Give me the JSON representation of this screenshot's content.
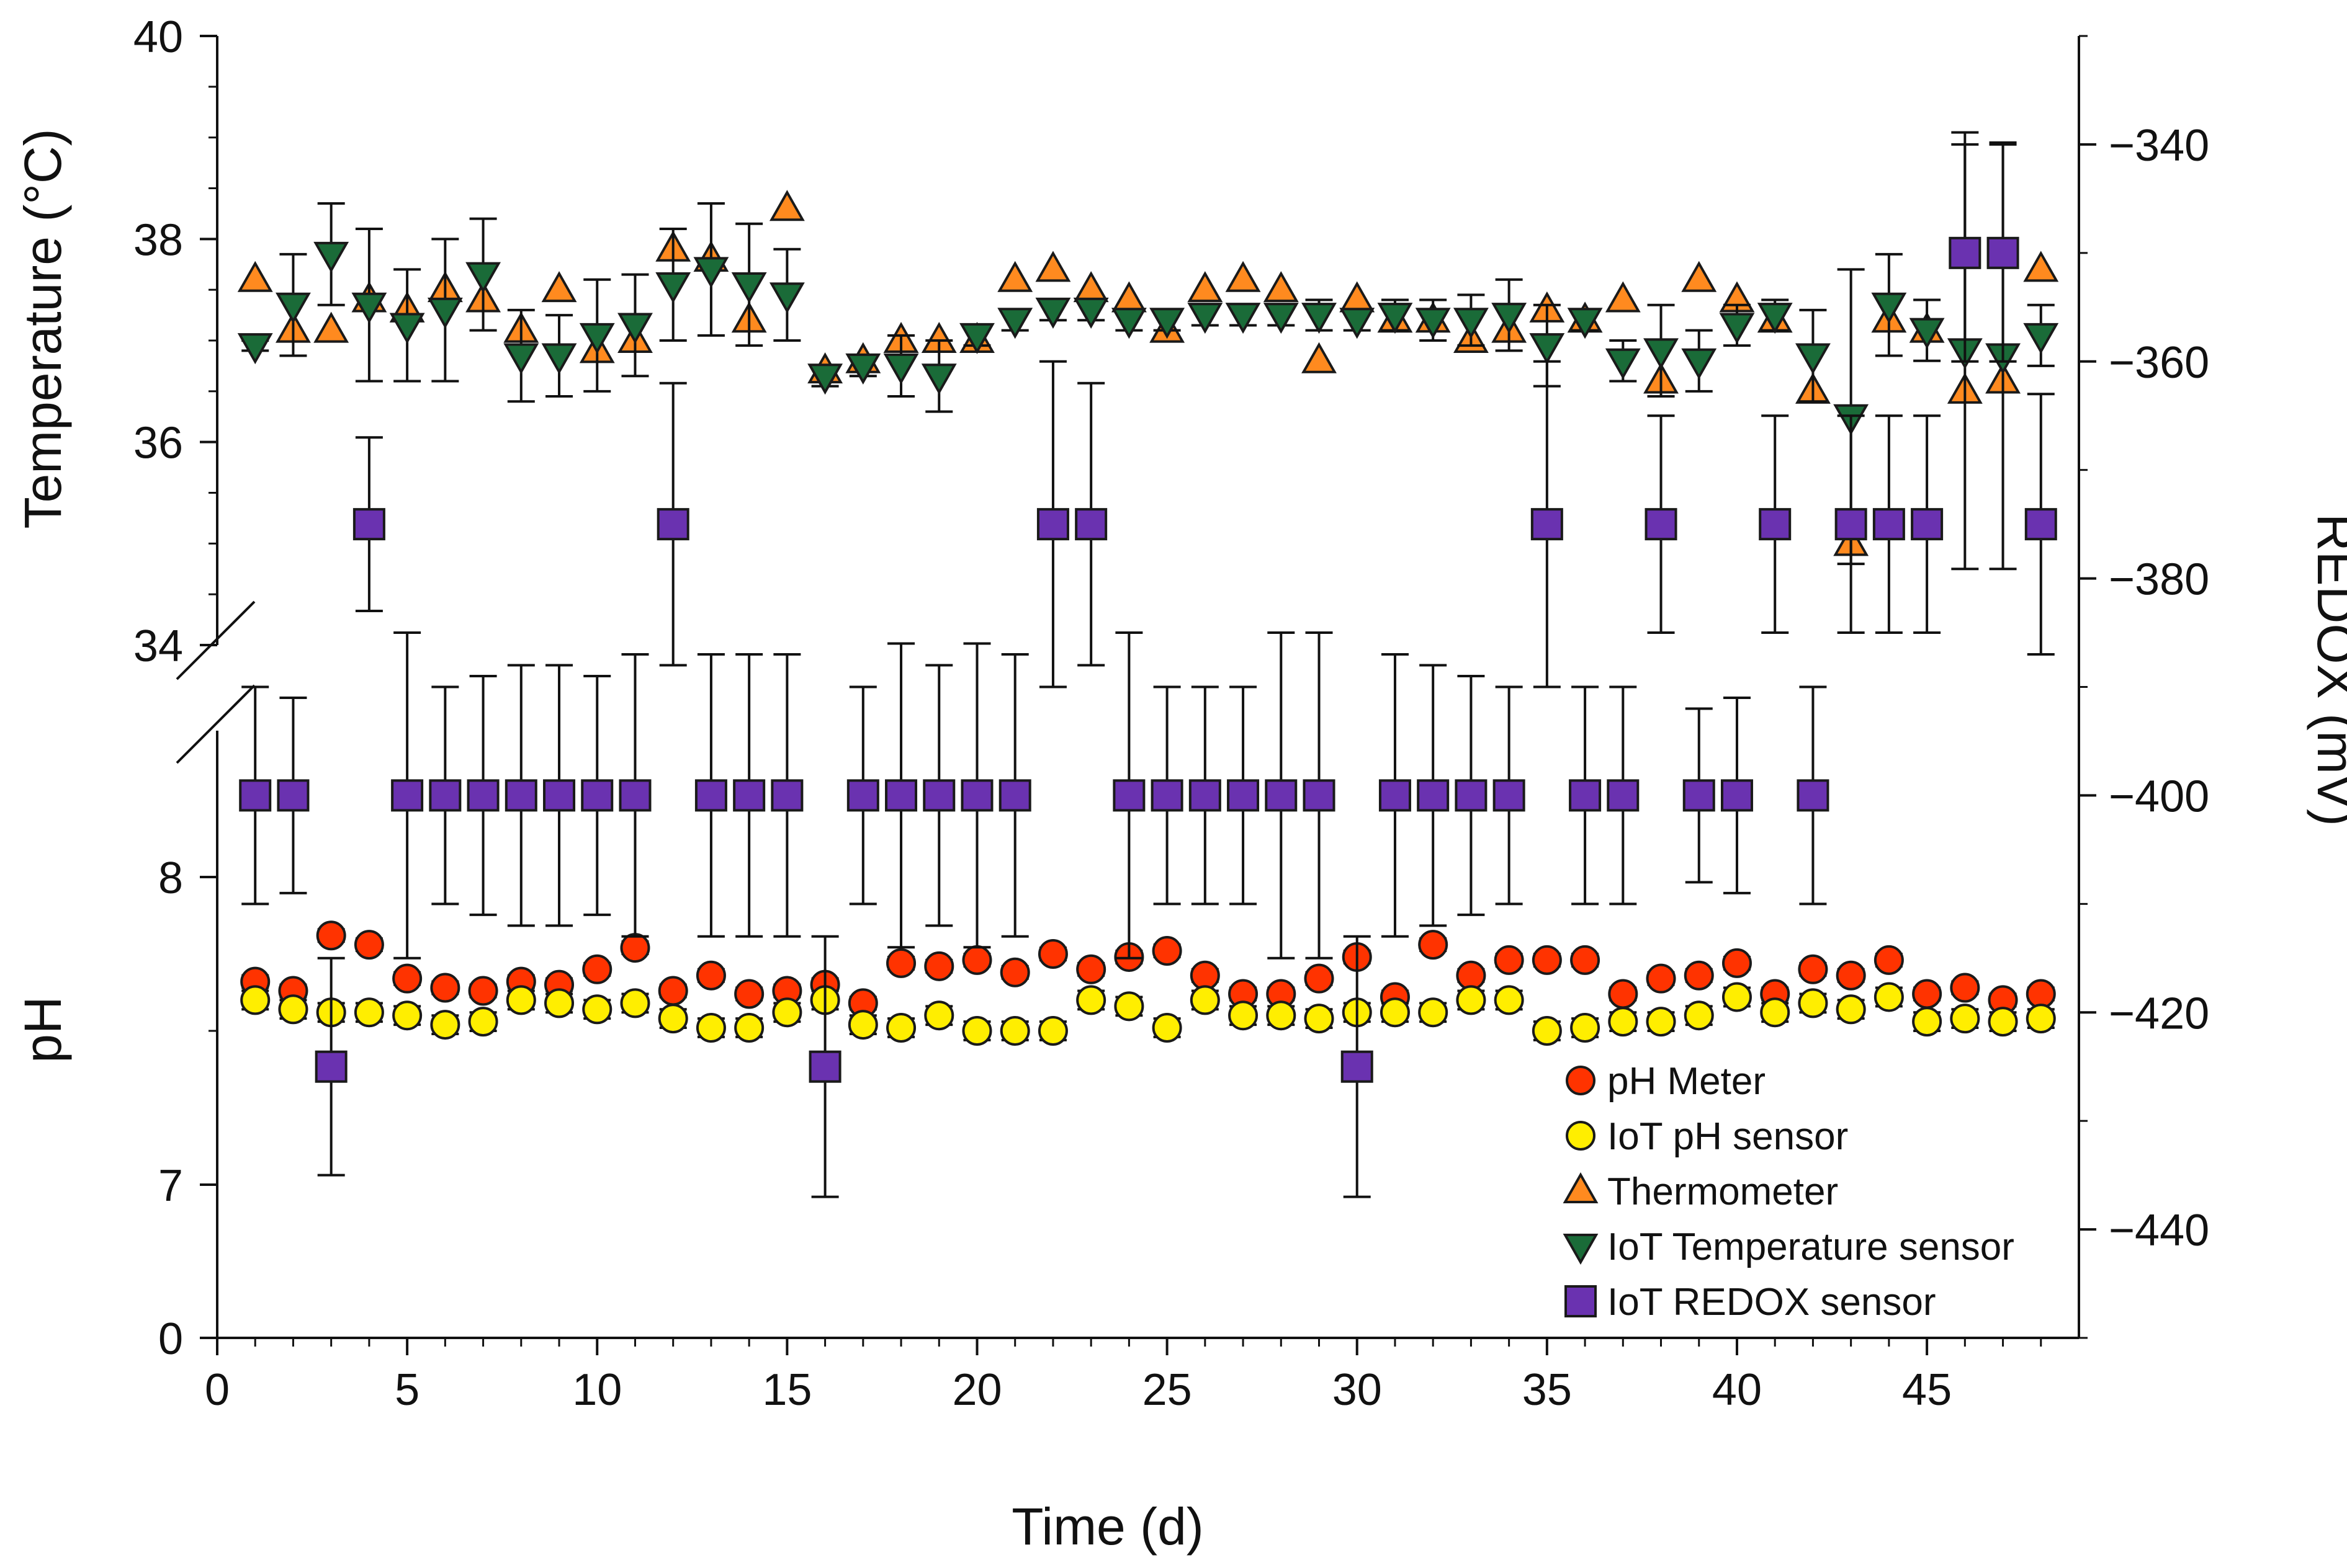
{
  "chart_data": {
    "type": "scatter",
    "xlabel": "Time (d)",
    "ylabel_left_top": "Temperature (°C)",
    "ylabel_left_bottom": "pH",
    "ylabel_right": "REDOX (mV)",
    "x_range": [
      0,
      49
    ],
    "x_ticks": [
      {
        "value": 0,
        "label": "0"
      },
      {
        "value": 5,
        "label": "5"
      },
      {
        "value": 10,
        "label": "10"
      },
      {
        "value": 15,
        "label": "15"
      },
      {
        "value": 20,
        "label": "20"
      },
      {
        "value": 25,
        "label": "25"
      },
      {
        "value": 30,
        "label": "30"
      },
      {
        "value": 35,
        "label": "35"
      },
      {
        "value": 40,
        "label": "40"
      },
      {
        "value": 45,
        "label": "45"
      }
    ],
    "temperature_axis": {
      "range": [
        34,
        40
      ],
      "ticks": [
        {
          "value": 34,
          "label": "34"
        },
        {
          "value": 36,
          "label": "36"
        },
        {
          "value": 38,
          "label": "38"
        },
        {
          "value": 40,
          "label": "40"
        }
      ]
    },
    "ph_axis": {
      "segments": [
        [
          0,
          0
        ],
        [
          7,
          8
        ]
      ],
      "ticks": [
        {
          "value": 0,
          "label": "0"
        },
        {
          "value": 7,
          "label": "7"
        },
        {
          "value": 8,
          "label": "8"
        }
      ]
    },
    "redox_axis": {
      "range": [
        -450,
        -330
      ],
      "ticks": [
        {
          "value": -340,
          "label": "−340"
        },
        {
          "value": -360,
          "label": "−360"
        },
        {
          "value": -380,
          "label": "−380"
        },
        {
          "value": -400,
          "label": "−400"
        },
        {
          "value": -420,
          "label": "−420"
        },
        {
          "value": -440,
          "label": "−440"
        }
      ]
    },
    "legend_position": "bottom-right",
    "colors": {
      "ph_meter": "#ff3300",
      "iot_ph": "#ffee00",
      "thermometer": "#ff8a1f",
      "iot_temp": "#1a6b38",
      "iot_redox": "#6a32b0"
    },
    "series": [
      {
        "key": "ph_meter",
        "name": "pH Meter",
        "axis": "ph",
        "marker": "circle",
        "color": "#ff3300",
        "x": [
          1,
          2,
          3,
          4,
          5,
          6,
          7,
          8,
          9,
          10,
          11,
          12,
          13,
          14,
          15,
          16,
          17,
          18,
          19,
          20,
          21,
          22,
          23,
          24,
          25,
          26,
          27,
          28,
          29,
          30,
          31,
          32,
          33,
          34,
          35,
          36,
          37,
          38,
          39,
          40,
          41,
          42,
          43,
          44,
          45,
          46,
          47,
          48
        ],
        "y": [
          7.66,
          7.63,
          7.81,
          7.78,
          7.67,
          7.64,
          7.63,
          7.66,
          7.65,
          7.7,
          7.77,
          7.63,
          7.68,
          7.62,
          7.63,
          7.65,
          7.59,
          7.72,
          7.71,
          7.73,
          7.69,
          7.75,
          7.7,
          7.74,
          7.76,
          7.68,
          7.62,
          7.62,
          7.67,
          7.74,
          7.61,
          7.78,
          7.68,
          7.73,
          7.73,
          7.73,
          7.62,
          7.67,
          7.68,
          7.72,
          7.62,
          7.7,
          7.68,
          7.73,
          7.62,
          7.64,
          7.6,
          7.62
        ],
        "err": [
          0.02,
          0.02,
          0.02,
          0.02,
          0.02,
          0.02,
          0.02,
          0.02,
          0.02,
          0.02,
          0.02,
          0.02,
          0.02,
          0.02,
          0.02,
          0.02,
          0.02,
          0.02,
          0.02,
          0.02,
          0.02,
          0.02,
          0.02,
          0.02,
          0.02,
          0.02,
          0.02,
          0.02,
          0.02,
          0.02,
          0.02,
          0.02,
          0.02,
          0.02,
          0.02,
          0.02,
          0.02,
          0.02,
          0.02,
          0.02,
          0.02,
          0.02,
          0.02,
          0.02,
          0.02,
          0.02,
          0.02,
          0.02
        ]
      },
      {
        "key": "iot_ph",
        "name": "IoT pH sensor",
        "axis": "ph",
        "marker": "circle",
        "color": "#ffee00",
        "x": [
          1,
          2,
          3,
          4,
          5,
          6,
          7,
          8,
          9,
          10,
          11,
          12,
          13,
          14,
          15,
          16,
          17,
          18,
          19,
          20,
          21,
          22,
          23,
          24,
          25,
          26,
          27,
          28,
          29,
          30,
          31,
          32,
          33,
          34,
          35,
          36,
          37,
          38,
          39,
          40,
          41,
          42,
          43,
          44,
          45,
          46,
          47,
          48
        ],
        "y": [
          7.6,
          7.57,
          7.56,
          7.56,
          7.55,
          7.52,
          7.53,
          7.6,
          7.59,
          7.57,
          7.59,
          7.54,
          7.51,
          7.51,
          7.56,
          7.6,
          7.52,
          7.51,
          7.55,
          7.5,
          7.5,
          7.5,
          7.6,
          7.58,
          7.51,
          7.6,
          7.55,
          7.55,
          7.54,
          7.56,
          7.56,
          7.56,
          7.6,
          7.6,
          7.5,
          7.51,
          7.53,
          7.53,
          7.55,
          7.61,
          7.56,
          7.59,
          7.57,
          7.61,
          7.53,
          7.54,
          7.53,
          7.54
        ],
        "err": [
          0.03,
          0.03,
          0.03,
          0.03,
          0.03,
          0.03,
          0.03,
          0.03,
          0.03,
          0.03,
          0.03,
          0.03,
          0.03,
          0.03,
          0.03,
          0.03,
          0.03,
          0.03,
          0.03,
          0.03,
          0.03,
          0.03,
          0.03,
          0.03,
          0.03,
          0.03,
          0.03,
          0.03,
          0.03,
          0.03,
          0.03,
          0.03,
          0.03,
          0.03,
          0.03,
          0.03,
          0.03,
          0.03,
          0.03,
          0.03,
          0.03,
          0.03,
          0.03,
          0.03,
          0.03,
          0.03,
          0.03,
          0.03
        ]
      },
      {
        "key": "thermometer",
        "name": "Thermometer",
        "axis": "temperature",
        "marker": "triangle-up",
        "color": "#ff8a1f",
        "x": [
          1,
          2,
          3,
          4,
          5,
          6,
          7,
          8,
          9,
          10,
          11,
          12,
          13,
          14,
          15,
          16,
          17,
          18,
          19,
          20,
          21,
          22,
          23,
          24,
          25,
          26,
          27,
          28,
          29,
          30,
          31,
          32,
          33,
          34,
          35,
          36,
          37,
          38,
          39,
          40,
          41,
          42,
          43,
          44,
          45,
          46,
          47,
          48
        ],
        "y": [
          37.6,
          37.1,
          37.1,
          37.4,
          37.3,
          37.5,
          37.4,
          37.1,
          37.5,
          36.9,
          37.0,
          37.9,
          37.8,
          37.2,
          38.3,
          36.7,
          36.8,
          37.0,
          37.0,
          37.0,
          37.6,
          37.7,
          37.5,
          37.4,
          37.1,
          37.5,
          37.6,
          37.5,
          36.8,
          37.4,
          37.2,
          37.2,
          37.0,
          37.1,
          37.3,
          37.2,
          37.4,
          36.6,
          37.6,
          37.4,
          37.2,
          36.5,
          35.0,
          37.2,
          37.1,
          36.5,
          36.6,
          37.7
        ],
        "err": []
      },
      {
        "key": "iot_temp",
        "name": "IoT Temperature sensor",
        "axis": "temperature",
        "marker": "triangle-down",
        "color": "#1a6b38",
        "x": [
          1,
          2,
          3,
          4,
          5,
          6,
          7,
          8,
          9,
          10,
          11,
          12,
          13,
          14,
          15,
          16,
          17,
          18,
          19,
          20,
          21,
          22,
          23,
          24,
          25,
          26,
          27,
          28,
          29,
          30,
          31,
          32,
          33,
          34,
          35,
          36,
          37,
          38,
          39,
          40,
          41,
          42,
          43,
          44,
          45,
          46,
          47,
          48
        ],
        "y": [
          36.95,
          37.35,
          37.85,
          37.35,
          37.15,
          37.3,
          37.65,
          36.85,
          36.85,
          37.05,
          37.15,
          37.55,
          37.7,
          37.55,
          37.45,
          36.65,
          36.75,
          36.75,
          36.65,
          37.05,
          37.2,
          37.3,
          37.3,
          37.2,
          37.2,
          37.25,
          37.25,
          37.25,
          37.25,
          37.2,
          37.25,
          37.2,
          37.2,
          37.25,
          36.95,
          37.2,
          36.8,
          36.9,
          36.8,
          37.15,
          37.25,
          36.85,
          36.25,
          37.35,
          37.1,
          36.9,
          36.85,
          37.05
        ],
        "err": [
          0.05,
          0.5,
          0.5,
          0.75,
          0.55,
          0.7,
          0.55,
          0.45,
          0.4,
          0.55,
          0.5,
          0.55,
          0.65,
          0.6,
          0.45,
          0.1,
          0.1,
          0.3,
          0.35,
          0.1,
          0.1,
          0.1,
          0.1,
          0.1,
          0.1,
          0.1,
          0.1,
          0.1,
          0.15,
          0.1,
          0.15,
          0.2,
          0.25,
          0.35,
          0.4,
          0.1,
          0.2,
          0.45,
          0.3,
          0.2,
          0.15,
          0.45,
          1.45,
          0.5,
          0.3,
          2.15,
          2.1,
          0.3
        ]
      },
      {
        "key": "iot_redox",
        "name": "IoT REDOX sensor",
        "axis": "redox",
        "marker": "square",
        "color": "#6a32b0",
        "x": [
          1,
          2,
          3,
          4,
          5,
          6,
          7,
          8,
          9,
          10,
          11,
          12,
          13,
          14,
          15,
          16,
          17,
          18,
          19,
          20,
          21,
          22,
          23,
          24,
          25,
          26,
          27,
          28,
          29,
          30,
          31,
          32,
          33,
          34,
          35,
          36,
          37,
          38,
          39,
          40,
          41,
          42,
          43,
          44,
          45,
          46,
          47,
          48
        ],
        "y": [
          -400,
          -400,
          -425,
          -375,
          -400,
          -400,
          -400,
          -400,
          -400,
          -400,
          -400,
          -375,
          -400,
          -400,
          -400,
          -425,
          -400,
          -400,
          -400,
          -400,
          -400,
          -375,
          -375,
          -400,
          -400,
          -400,
          -400,
          -400,
          -400,
          -425,
          -400,
          -400,
          -400,
          -400,
          -375,
          -400,
          -400,
          -375,
          -400,
          -400,
          -375,
          -400,
          -375,
          -375,
          -375,
          -350,
          -350,
          -375
        ],
        "err": [
          10,
          9,
          10,
          8,
          15,
          10,
          11,
          12,
          12,
          11,
          13,
          13,
          13,
          13,
          13,
          12,
          10,
          14,
          12,
          14,
          13,
          15,
          13,
          15,
          10,
          10,
          10,
          15,
          15,
          12,
          13,
          12,
          11,
          10,
          15,
          10,
          10,
          10,
          8,
          9,
          10,
          10,
          10,
          10,
          10,
          10,
          10,
          12
        ]
      }
    ]
  }
}
